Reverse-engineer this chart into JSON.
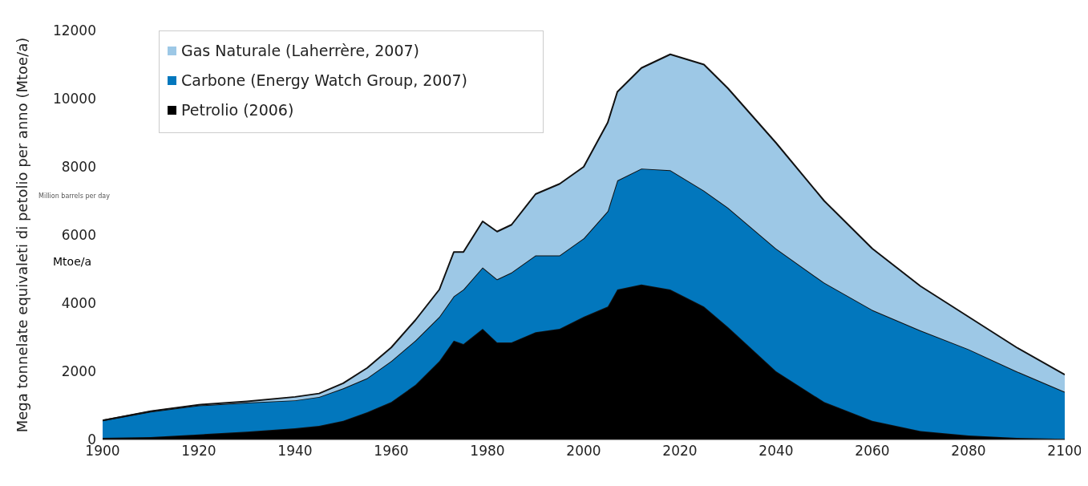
{
  "chart_data": {
    "type": "area",
    "stacked": true,
    "ylabel": "Mega tonnelate equivaleti di petolio per anno (Mtoe/a)",
    "x": [
      1900,
      1910,
      1920,
      1930,
      1940,
      1945,
      1950,
      1955,
      1960,
      1965,
      1970,
      1973,
      1975,
      1979,
      1982,
      1985,
      1990,
      1995,
      2000,
      2005,
      2007,
      2012,
      2018,
      2025,
      2030,
      2040,
      2050,
      2060,
      2070,
      2080,
      2090,
      2100
    ],
    "series": [
      {
        "name": "Petrolio  (2006)",
        "color": "#000000",
        "values": [
          50,
          70,
          150,
          230,
          330,
          400,
          550,
          800,
          1100,
          1600,
          2300,
          2900,
          2800,
          3250,
          2850,
          2850,
          3150,
          3250,
          3600,
          3900,
          4400,
          4550,
          4400,
          3900,
          3300,
          2000,
          1100,
          550,
          250,
          120,
          50,
          20
        ]
      },
      {
        "name": "Carbone (Energy Watch Group, 2007)",
        "color": "#0277bd",
        "values": [
          510,
          750,
          850,
          850,
          820,
          850,
          950,
          1000,
          1200,
          1300,
          1300,
          1300,
          1600,
          1800,
          1850,
          2050,
          2250,
          2150,
          2300,
          2800,
          3200,
          3400,
          3500,
          3400,
          3500,
          3600,
          3500,
          3250,
          2950,
          2530,
          1950,
          1380
        ]
      },
      {
        "name": "Gas Naturale (Laherrère, 2007)",
        "color": "#9dc8e6",
        "values": [
          0,
          10,
          20,
          40,
          100,
          100,
          150,
          300,
          400,
          600,
          800,
          1300,
          1100,
          1350,
          1400,
          1400,
          1800,
          2100,
          2100,
          2600,
          2600,
          2950,
          3400,
          3700,
          3500,
          3100,
          2400,
          1800,
          1300,
          950,
          700,
          500
        ]
      }
    ],
    "xlim": [
      1900,
      2100
    ],
    "xticks": [
      1900,
      1920,
      1940,
      1960,
      1980,
      2000,
      2020,
      2040,
      2060,
      2080,
      2100
    ],
    "ylim": [
      0,
      12000
    ],
    "yticks": [
      0,
      2000,
      4000,
      6000,
      8000,
      10000,
      12000
    ],
    "legend": "top left",
    "annotations": [
      "Mtoe/a",
      "Million barrels per day"
    ]
  }
}
